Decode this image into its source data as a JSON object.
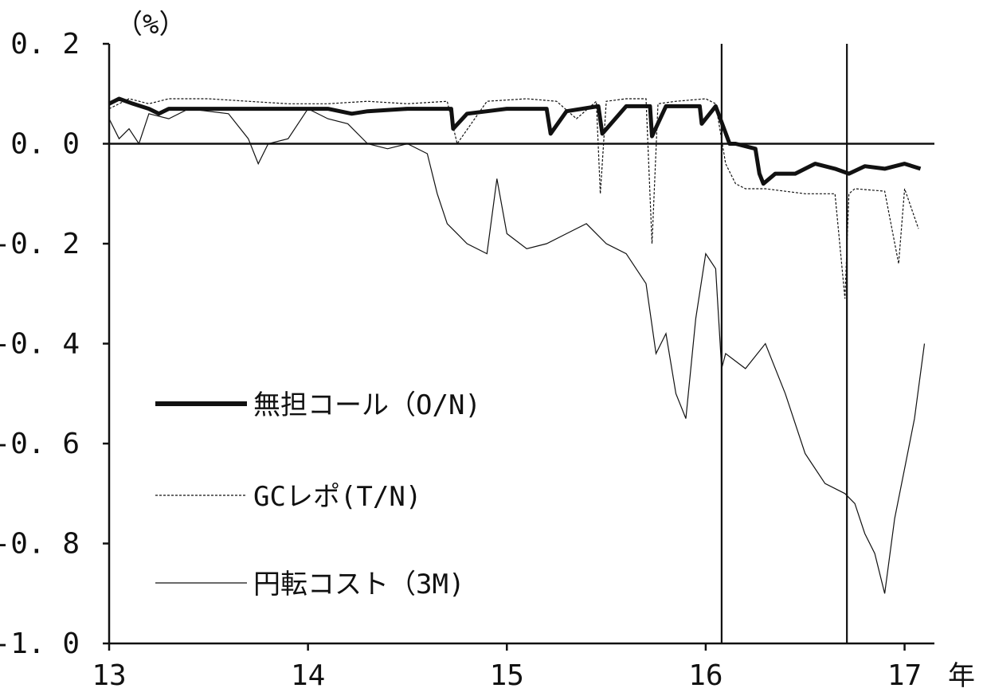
{
  "chart_data": {
    "type": "line",
    "y_unit_label": "（%）",
    "x_unit_label": "年",
    "x_tick_labels": [
      "13",
      "14",
      "15",
      "16",
      "17"
    ],
    "x_ticks": [
      13,
      14,
      15,
      16,
      17
    ],
    "y_tick_labels": [
      "0. 2",
      "0. 0",
      "-0. 2",
      "-0. 4",
      "-0. 6",
      "-0. 8",
      "-1. 0"
    ],
    "y_ticks": [
      0.2,
      0.0,
      -0.2,
      -0.4,
      -0.6,
      -0.8,
      -1.0
    ],
    "xlim": [
      13,
      17.15
    ],
    "ylim": [
      -1.0,
      0.2
    ],
    "grid": false,
    "legend_position": "left-center",
    "reference_lines": {
      "horizontal_y": 0.0,
      "vertical_x": [
        16.08,
        16.71
      ]
    },
    "series": [
      {
        "name": "無担コール（O/N)",
        "style": "thick",
        "x": [
          13.0,
          13.05,
          13.12,
          13.2,
          13.25,
          13.3,
          13.5,
          13.7,
          13.9,
          14.1,
          14.22,
          14.3,
          14.5,
          14.72,
          14.73,
          14.8,
          15.0,
          15.2,
          15.22,
          15.3,
          15.46,
          15.48,
          15.6,
          15.72,
          15.73,
          15.8,
          15.97,
          15.98,
          16.05,
          16.12,
          16.15,
          16.25,
          16.27,
          16.29,
          16.35,
          16.45,
          16.55,
          16.65,
          16.72,
          16.8,
          16.9,
          17.0,
          17.08
        ],
        "y": [
          0.08,
          0.09,
          0.08,
          0.07,
          0.06,
          0.07,
          0.07,
          0.07,
          0.07,
          0.07,
          0.06,
          0.065,
          0.07,
          0.07,
          0.03,
          0.06,
          0.07,
          0.07,
          0.02,
          0.065,
          0.075,
          0.02,
          0.075,
          0.075,
          0.015,
          0.075,
          0.075,
          0.04,
          0.075,
          0.0,
          0.0,
          -0.01,
          -0.06,
          -0.08,
          -0.06,
          -0.06,
          -0.04,
          -0.05,
          -0.06,
          -0.045,
          -0.05,
          -0.04,
          -0.05
        ]
      },
      {
        "name": "GCレポ(T/N)",
        "style": "dotted",
        "x": [
          13.0,
          13.1,
          13.2,
          13.3,
          13.5,
          13.7,
          13.9,
          14.1,
          14.3,
          14.5,
          14.7,
          14.75,
          14.9,
          15.1,
          15.25,
          15.35,
          15.45,
          15.47,
          15.5,
          15.6,
          15.7,
          15.73,
          15.76,
          15.85,
          16.0,
          16.05,
          16.1,
          16.15,
          16.2,
          16.3,
          16.5,
          16.65,
          16.7,
          16.72,
          16.75,
          16.9,
          16.97,
          17.0,
          17.07
        ],
        "y": [
          0.07,
          0.09,
          0.08,
          0.09,
          0.09,
          0.085,
          0.08,
          0.08,
          0.085,
          0.08,
          0.085,
          0.0,
          0.085,
          0.09,
          0.085,
          0.05,
          0.085,
          -0.1,
          0.085,
          0.09,
          0.09,
          -0.2,
          0.08,
          0.085,
          0.09,
          0.08,
          -0.04,
          -0.08,
          -0.09,
          -0.09,
          -0.1,
          -0.1,
          -0.31,
          -0.1,
          -0.09,
          -0.095,
          -0.24,
          -0.09,
          -0.17
        ]
      },
      {
        "name": "円転コスト（3M)",
        "style": "thin",
        "x": [
          13.0,
          13.05,
          13.1,
          13.15,
          13.2,
          13.3,
          13.4,
          13.6,
          13.7,
          13.75,
          13.8,
          13.9,
          14.0,
          14.1,
          14.2,
          14.3,
          14.4,
          14.5,
          14.6,
          14.65,
          14.7,
          14.75,
          14.8,
          14.9,
          14.95,
          15.0,
          15.1,
          15.2,
          15.3,
          15.4,
          15.5,
          15.6,
          15.7,
          15.75,
          15.8,
          15.85,
          15.9,
          15.95,
          16.0,
          16.05,
          16.08,
          16.1,
          16.2,
          16.3,
          16.4,
          16.5,
          16.6,
          16.7,
          16.75,
          16.8,
          16.85,
          16.9,
          16.95,
          17.0,
          17.05,
          17.1
        ],
        "y": [
          0.05,
          0.01,
          0.03,
          0.0,
          0.06,
          0.05,
          0.07,
          0.06,
          0.01,
          -0.04,
          0.0,
          0.01,
          0.07,
          0.05,
          0.04,
          0.0,
          -0.01,
          0.0,
          -0.02,
          -0.1,
          -0.16,
          -0.18,
          -0.2,
          -0.22,
          -0.07,
          -0.18,
          -0.21,
          -0.2,
          -0.18,
          -0.16,
          -0.2,
          -0.22,
          -0.28,
          -0.42,
          -0.38,
          -0.5,
          -0.55,
          -0.35,
          -0.22,
          -0.25,
          -0.45,
          -0.42,
          -0.45,
          -0.4,
          -0.5,
          -0.62,
          -0.68,
          -0.7,
          -0.72,
          -0.78,
          -0.82,
          -0.9,
          -0.75,
          -0.65,
          -0.55,
          -0.4
        ]
      }
    ]
  }
}
